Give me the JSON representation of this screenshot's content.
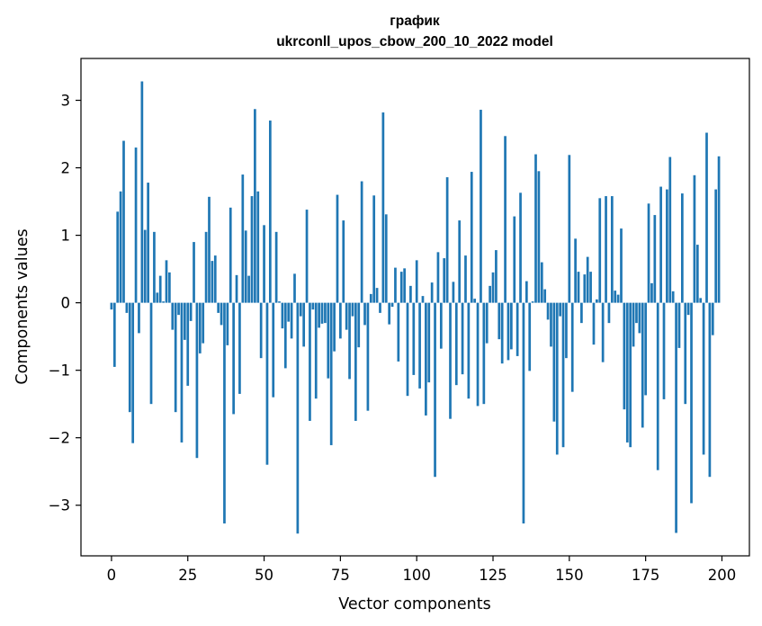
{
  "chart_data": {
    "type": "bar",
    "title_line1": "график",
    "title_line2": "ukrconll_upos_cbow_200_10_2022 model",
    "xlabel": "Vector components",
    "ylabel": "Components values",
    "xlim": [
      -10,
      209
    ],
    "ylim": [
      -3.75,
      3.62
    ],
    "xticks": [
      0,
      25,
      50,
      75,
      100,
      125,
      150,
      175,
      200
    ],
    "xtick_labels": [
      "0",
      "25",
      "50",
      "75",
      "100",
      "125",
      "150",
      "175",
      "200"
    ],
    "yticks": [
      -3,
      -2,
      -1,
      0,
      1,
      2,
      3
    ],
    "ytick_labels": [
      "−3",
      "−2",
      "−1",
      "0",
      "1",
      "2",
      "3"
    ],
    "grid": false,
    "bar_color": "#1f77b4",
    "values": [
      -0.1,
      -0.95,
      1.35,
      1.65,
      2.4,
      -0.15,
      -1.62,
      -2.08,
      2.3,
      -0.45,
      3.28,
      1.08,
      1.78,
      -1.5,
      1.05,
      0.15,
      0.4,
      0.02,
      0.63,
      0.45,
      -0.4,
      -1.62,
      -0.18,
      -2.07,
      -0.55,
      -1.23,
      -0.27,
      0.9,
      -2.3,
      -0.75,
      -0.6,
      1.05,
      1.57,
      0.62,
      0.7,
      -0.15,
      -0.33,
      -3.27,
      -0.63,
      1.41,
      -1.65,
      0.41,
      -1.35,
      1.9,
      1.07,
      0.4,
      1.58,
      2.87,
      1.65,
      -0.82,
      1.15,
      -2.4,
      2.7,
      -1.4,
      1.05,
      0.02,
      -0.38,
      -0.97,
      -0.28,
      -0.53,
      0.43,
      -3.42,
      -0.2,
      -0.65,
      1.38,
      -1.75,
      -0.1,
      -1.42,
      -0.37,
      -0.31,
      -0.3,
      -1.12,
      -2.11,
      -0.72,
      1.6,
      -0.53,
      1.22,
      -0.4,
      -1.13,
      -0.2,
      -1.75,
      -0.66,
      1.8,
      -0.33,
      -1.6,
      0.13,
      1.59,
      0.22,
      -0.15,
      2.82,
      1.31,
      -0.32,
      -0.06,
      0.52,
      -0.87,
      0.46,
      0.51,
      -1.38,
      0.25,
      -1.07,
      0.63,
      -1.27,
      0.1,
      -1.67,
      -1.18,
      0.3,
      -2.58,
      0.75,
      -0.68,
      0.66,
      1.86,
      -1.72,
      0.31,
      -1.22,
      1.22,
      -1.06,
      0.7,
      -1.42,
      1.94,
      0.06,
      -1.53,
      2.86,
      -1.5,
      -0.6,
      0.25,
      0.45,
      0.78,
      -0.54,
      -0.9,
      2.47,
      -0.85,
      -0.69,
      1.28,
      -0.79,
      1.63,
      -3.27,
      0.32,
      -1.01,
      0.02,
      2.2,
      1.95,
      0.6,
      0.2,
      -0.25,
      -0.65,
      -1.76,
      -2.25,
      -0.2,
      -2.14,
      -0.82,
      2.19,
      -1.32,
      0.95,
      0.46,
      -0.3,
      0.42,
      0.68,
      0.46,
      -0.62,
      0.05,
      1.55,
      -0.88,
      1.58,
      -0.3,
      1.58,
      0.18,
      0.12,
      1.1,
      -1.58,
      -2.07,
      -2.14,
      -0.65,
      -0.3,
      -0.45,
      -1.85,
      -1.37,
      1.47,
      0.29,
      1.3,
      -2.48,
      1.72,
      -1.43,
      1.68,
      2.16,
      0.17,
      -3.41,
      -0.67,
      1.62,
      -1.5,
      -0.18,
      -2.97,
      1.89,
      0.86,
      0.07,
      -2.25,
      2.52,
      -2.58,
      -0.48,
      1.68,
      2.17
    ]
  }
}
